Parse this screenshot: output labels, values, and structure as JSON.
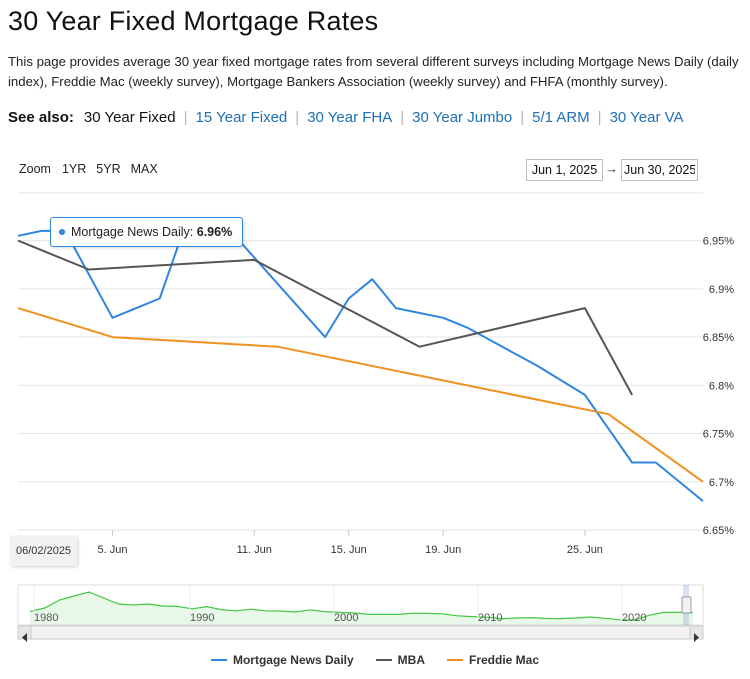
{
  "page": {
    "title": "30 Year Fixed Mortgage Rates",
    "description": "This page provides average 30 year fixed mortgage rates from several different surveys including Mortgage News Daily (daily index), Freddie Mac (weekly survey), Mortgage Bankers Association (weekly survey) and FHFA (monthly survey)."
  },
  "see_also": {
    "label": "See also:",
    "current": "30 Year Fixed",
    "links": [
      "15 Year Fixed",
      "30 Year FHA",
      "30 Year Jumbo",
      "5/1 ARM",
      "30 Year VA"
    ]
  },
  "controls": {
    "zoom_label": "Zoom",
    "zoom_buttons": [
      "1YR",
      "5YR",
      "MAX"
    ],
    "date_from": "Jun 1, 2025",
    "date_arrow": "→",
    "date_to": "Jun 30, 2025"
  },
  "tooltip": {
    "series": "Mortgage News Daily",
    "value": "6.96%",
    "date": "06/02/2025"
  },
  "colors": {
    "mnd": "#2f86de",
    "mba": "#555555",
    "freddie": "#f0901e",
    "navigator_line": "#42c742",
    "grid": "#e6e6e6"
  },
  "navigator": {
    "labels": [
      "1980",
      "1990",
      "2000",
      "2010",
      "2020"
    ]
  },
  "chart_data": {
    "type": "line",
    "x_ticks": [
      "5. Jun",
      "11. Jun",
      "15. Jun",
      "19. Jun",
      "25. Jun"
    ],
    "y_ticks": [
      "6.65%",
      "6.7%",
      "6.75%",
      "6.8%",
      "6.85%",
      "6.9%",
      "6.95%"
    ],
    "ylim": [
      6.65,
      6.99
    ],
    "xlim": [
      "2025-06-01",
      "2025-06-30"
    ],
    "grid": true,
    "legend_position": "bottom",
    "series": [
      {
        "name": "Mortgage News Daily",
        "points": [
          [
            "2025-06-01",
            6.955
          ],
          [
            "2025-06-02",
            6.96
          ],
          [
            "2025-06-03",
            6.96
          ],
          [
            "2025-06-05",
            6.87
          ],
          [
            "2025-06-07",
            6.89
          ],
          [
            "2025-06-08",
            6.96
          ],
          [
            "2025-06-10",
            6.96
          ],
          [
            "2025-06-14",
            6.85
          ],
          [
            "2025-06-15",
            6.89
          ],
          [
            "2025-06-16",
            6.91
          ],
          [
            "2025-06-17",
            6.88
          ],
          [
            "2025-06-19",
            6.87
          ],
          [
            "2025-06-20",
            6.86
          ],
          [
            "2025-06-23",
            6.82
          ],
          [
            "2025-06-25",
            6.79
          ],
          [
            "2025-06-27",
            6.72
          ],
          [
            "2025-06-28",
            6.72
          ],
          [
            "2025-06-30",
            6.68
          ]
        ]
      },
      {
        "name": "MBA",
        "points": [
          [
            "2025-06-01",
            6.95
          ],
          [
            "2025-06-04",
            6.92
          ],
          [
            "2025-06-11",
            6.93
          ],
          [
            "2025-06-18",
            6.84
          ],
          [
            "2025-06-25",
            6.88
          ],
          [
            "2025-06-27",
            6.79
          ]
        ]
      },
      {
        "name": "Freddie Mac",
        "points": [
          [
            "2025-06-01",
            6.88
          ],
          [
            "2025-06-05",
            6.85
          ],
          [
            "2025-06-12",
            6.84
          ],
          [
            "2025-06-26",
            6.77
          ],
          [
            "2025-06-30",
            6.7
          ]
        ]
      }
    ],
    "navigator_series": [
      7.2,
      9,
      13,
      15,
      17,
      14,
      11,
      10.5,
      11,
      10,
      9.8,
      8.6,
      9.7,
      8.2,
      7.6,
      8.4,
      7.6,
      7.5,
      7,
      8.1,
      7.2,
      6.8,
      6.5,
      5.8,
      5.8,
      5.8,
      6.4,
      6.3,
      6.1,
      5.1,
      4.7,
      4.4,
      3.7,
      4,
      4.2,
      3.8,
      3.7,
      4,
      4.5,
      3.9,
      3.1,
      3,
      5.3,
      6.8,
      6.8,
      6.7
    ]
  }
}
